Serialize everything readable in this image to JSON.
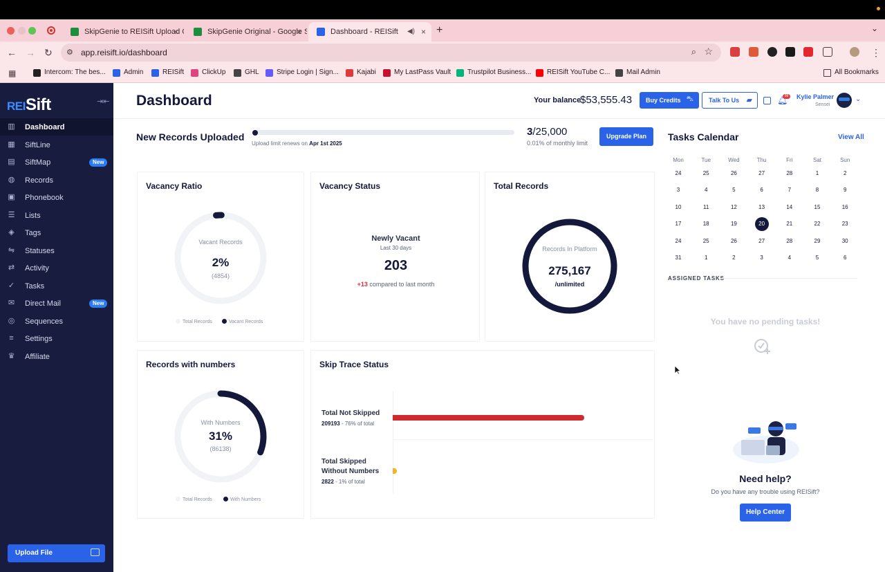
{
  "browser": {
    "tabs": [
      {
        "label": "SkipGenie to REISift Upload G",
        "icon_color": "#1e8e3e"
      },
      {
        "label": "SkipGenie Original - Google S",
        "icon_color": "#1e8e3e"
      },
      {
        "label": "Dashboard - REISift",
        "icon_color": "#2a62e8",
        "active": true
      }
    ],
    "url": "app.reisift.io/dashboard",
    "bookmarks": [
      {
        "label": "Intercom: The bes...",
        "icon_color": "#222222"
      },
      {
        "label": "Admin",
        "icon_color": "#2a62e8"
      },
      {
        "label": "REISift",
        "icon_color": "#2a62e8"
      },
      {
        "label": "ClickUp",
        "icon_color": "#e0447c"
      },
      {
        "label": "GHL",
        "icon_color": "#444444"
      },
      {
        "label": "Stripe Login | Sign...",
        "icon_color": "#635bff"
      },
      {
        "label": "Kajabi",
        "icon_color": "#e03a3a"
      },
      {
        "label": "My LastPass Vault",
        "icon_color": "#c8102e"
      },
      {
        "label": "Trustpilot Business...",
        "icon_color": "#00b67a"
      },
      {
        "label": "REISift YouTube C...",
        "icon_color": "#ff0000"
      },
      {
        "label": "Mail Admin",
        "icon_color": "#444444"
      }
    ],
    "all_bookmarks": "All Bookmarks"
  },
  "sidebar": {
    "logo_rei": "REI",
    "logo_sift": "Sift",
    "items": [
      {
        "label": "Dashboard",
        "icon": "chart-icon",
        "glyph": "▥",
        "active": true
      },
      {
        "label": "SiftLine",
        "icon": "grid-icon",
        "glyph": "▦"
      },
      {
        "label": "SiftMap",
        "icon": "map-icon",
        "glyph": "▤",
        "badge": "New"
      },
      {
        "label": "Records",
        "icon": "globe-icon",
        "glyph": "◍"
      },
      {
        "label": "Phonebook",
        "icon": "phonebook-icon",
        "glyph": "▣"
      },
      {
        "label": "Lists",
        "icon": "list-icon",
        "glyph": "☰"
      },
      {
        "label": "Tags",
        "icon": "tag-icon",
        "glyph": "◈"
      },
      {
        "label": "Statuses",
        "icon": "status-icon",
        "glyph": "⇋"
      },
      {
        "label": "Activity",
        "icon": "activity-icon",
        "glyph": "⇄"
      },
      {
        "label": "Tasks",
        "icon": "tasks-icon",
        "glyph": "✓"
      },
      {
        "label": "Direct Mail",
        "icon": "mail-icon",
        "glyph": "✉",
        "badge": "New"
      },
      {
        "label": "Sequences",
        "icon": "sequences-icon",
        "glyph": "◎"
      },
      {
        "label": "Settings",
        "icon": "settings-icon",
        "glyph": "≡"
      },
      {
        "label": "Affiliate",
        "icon": "trophy-icon",
        "glyph": "♛"
      }
    ],
    "upload_label": "Upload File"
  },
  "header": {
    "title": "Dashboard",
    "balance_label": "Your balance",
    "balance_value": "$53,555.43",
    "buy_credits": "Buy Credits",
    "talk_to_us": "Talk To Us",
    "notification_count": "99",
    "user_name": "Kylie Palmer",
    "user_role": "Sensei"
  },
  "records_uploaded": {
    "title": "New Records Uploaded",
    "renew_prefix": "Upload limit renews on",
    "renew_date": "Apr 1st 2025",
    "count": "3",
    "limit": "/25,000",
    "percent_text": "0.01% of monthly limit",
    "progress": 0.0001,
    "upgrade_label": "Upgrade Plan"
  },
  "vacancy_ratio": {
    "title": "Vacancy Ratio",
    "center_label": "Vacant Records",
    "value": "2%",
    "count": "(4854)",
    "fraction": 0.02,
    "legend": [
      "Total Records",
      "Vacant Records"
    ]
  },
  "vacancy_status": {
    "title": "Vacancy Status",
    "label": "Newly Vacant",
    "period": "Last 30 days",
    "value": "203",
    "delta": "+13",
    "compare_text": "compared to last month"
  },
  "total_records": {
    "title": "Total Records",
    "center_label": "Records In Platform",
    "value": "275,167",
    "sub": "/unlimited"
  },
  "records_numbers": {
    "title": "Records with numbers",
    "center_label": "With Numbers",
    "value": "31%",
    "count": "(86138)",
    "fraction": 0.31,
    "legend": [
      "Total Records",
      "With Numbers"
    ]
  },
  "skip_trace": {
    "title": "Skip Trace Status",
    "rows": [
      {
        "label": "Total Not Skipped",
        "count": "209193",
        "pct_text": "- 76% of total",
        "fraction": 0.76,
        "color": "#d02a2f"
      },
      {
        "label": "Total Skipped Without Numbers",
        "count": "2822",
        "pct_text": "- 1% of total",
        "fraction": 0.01,
        "color": "#f0b429"
      }
    ]
  },
  "tasks": {
    "title": "Tasks Calendar",
    "view_all": "View All",
    "weekdays": [
      "Mon",
      "Tue",
      "Wed",
      "Thu",
      "Fri",
      "Sat",
      "Sun"
    ],
    "weeks": [
      [
        "24",
        "25",
        "26",
        "27",
        "28",
        "1",
        "2"
      ],
      [
        "3",
        "4",
        "5",
        "6",
        "7",
        "8",
        "9"
      ],
      [
        "10",
        "11",
        "12",
        "13",
        "14",
        "15",
        "16"
      ],
      [
        "17",
        "18",
        "19",
        "20",
        "21",
        "22",
        "23"
      ],
      [
        "24",
        "25",
        "26",
        "27",
        "28",
        "29",
        "30"
      ],
      [
        "31",
        "1",
        "2",
        "3",
        "4",
        "5",
        "6"
      ]
    ],
    "today": "20",
    "assigned_label": "ASSIGNED TASKS",
    "empty_text": "You have no pending tasks!"
  },
  "help": {
    "title": "Need help?",
    "subtitle": "Do you have any trouble using REISift?",
    "button": "Help Center"
  }
}
